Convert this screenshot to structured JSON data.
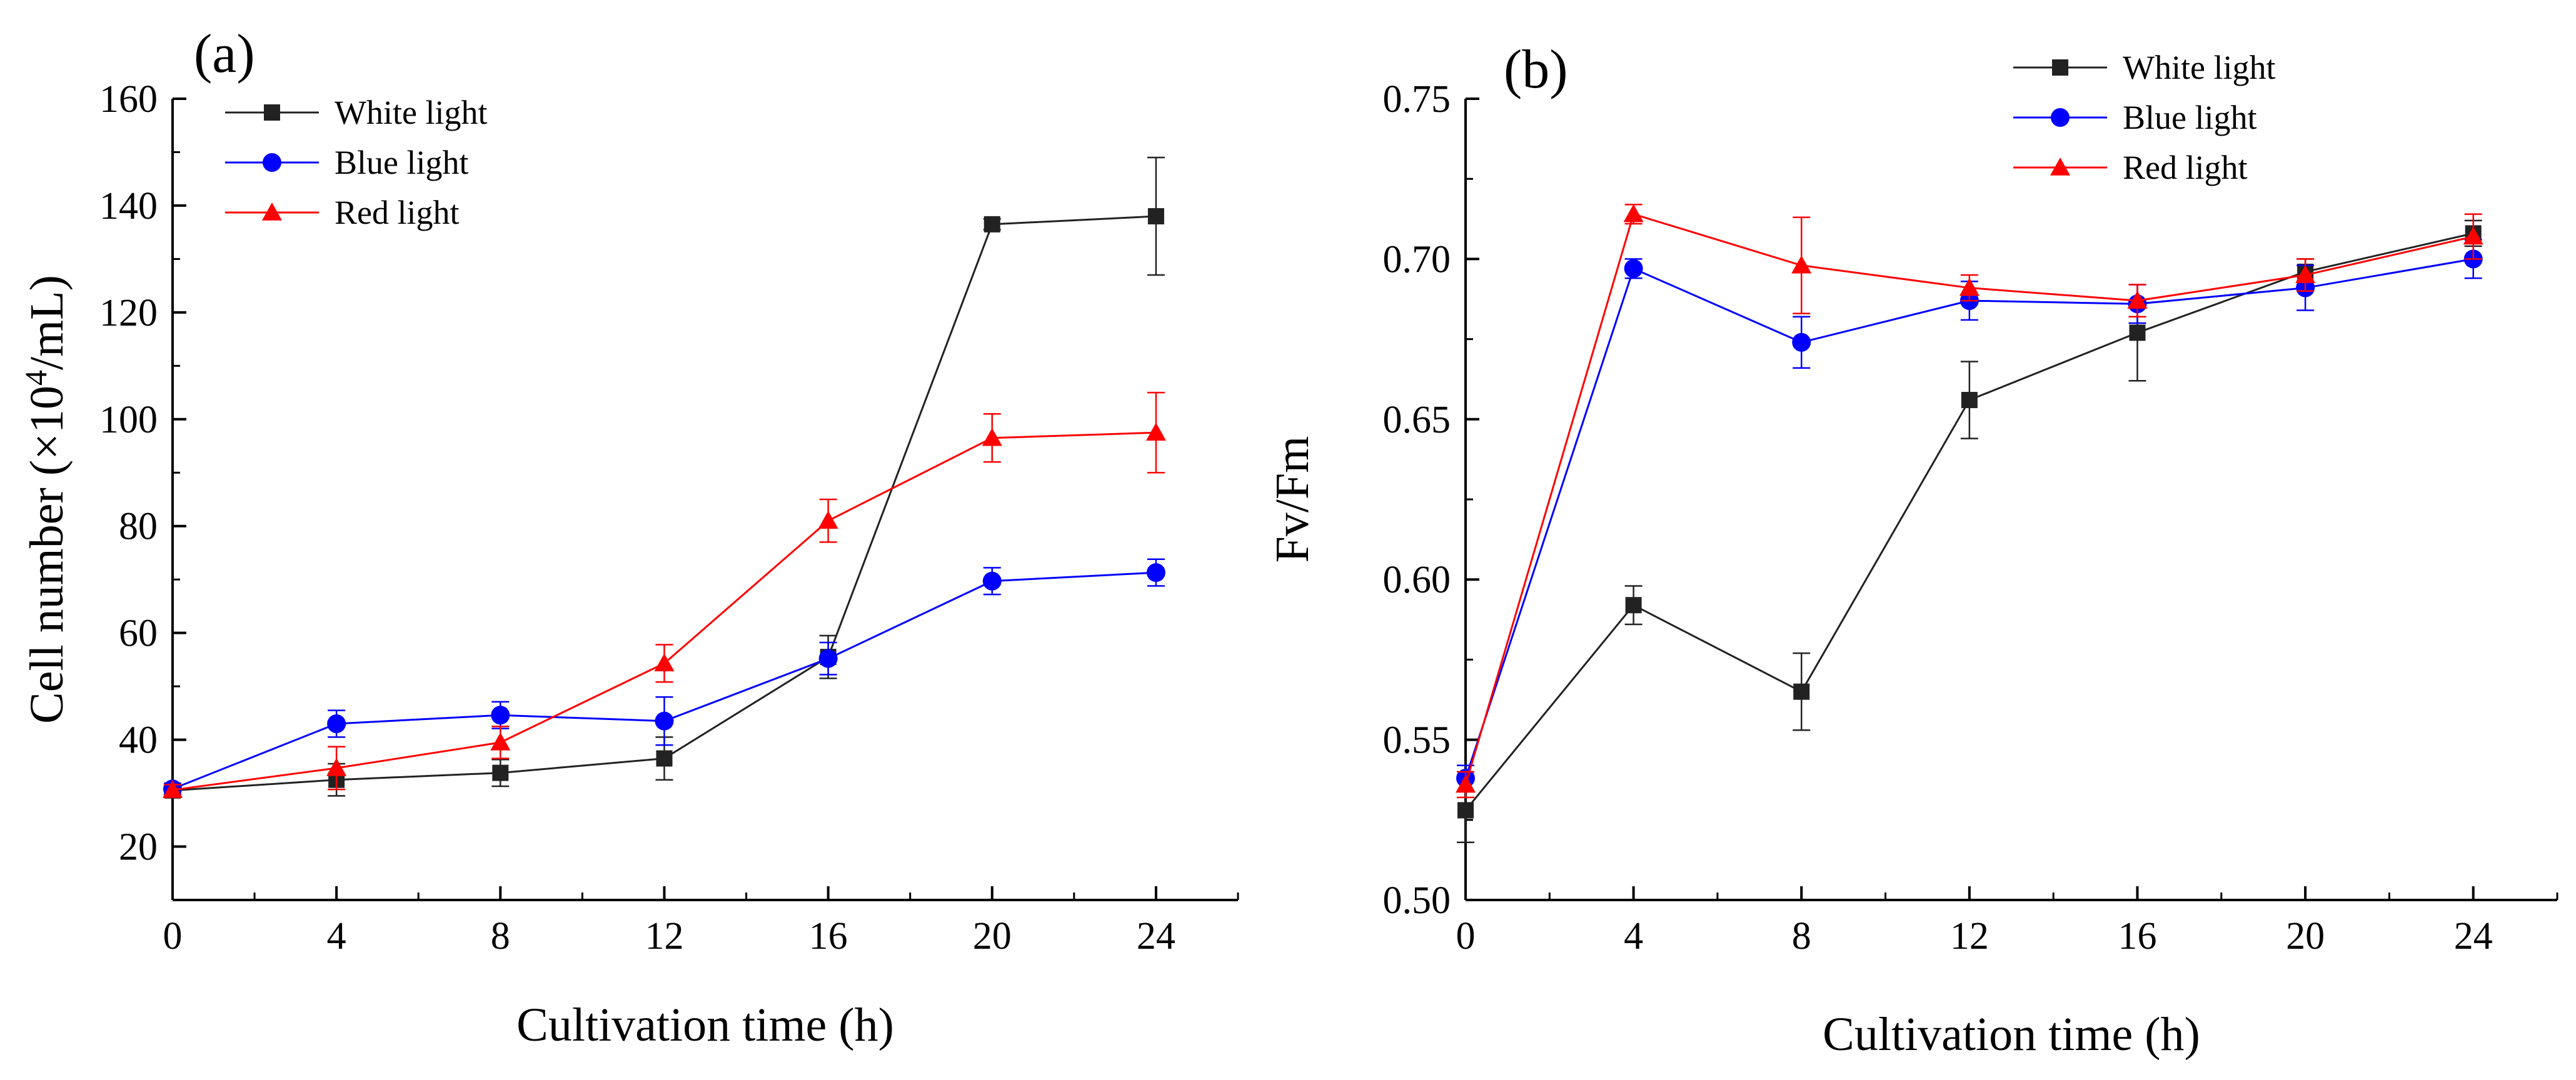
{
  "chart_data": [
    {
      "type": "line",
      "panel_label": "(a)",
      "xlabel": "Cultivation time (h)",
      "ylabel_main": "Cell number (×10",
      "ylabel_sup": "4",
      "ylabel_end": "/mL)",
      "xlim": [
        0,
        26
      ],
      "ylim": [
        10,
        160
      ],
      "x_ticks": [
        0,
        4,
        8,
        12,
        16,
        20,
        24
      ],
      "y_ticks": [
        20,
        40,
        60,
        80,
        100,
        120,
        140,
        160
      ],
      "grid": false,
      "legend_position": "top-left",
      "x": [
        0,
        4,
        8,
        12,
        16,
        20,
        24
      ],
      "series": [
        {
          "name": "White light",
          "color": "#222222",
          "marker": "square",
          "values": [
            30.5,
            32.5,
            33.8,
            36.5,
            55.5,
            136.5,
            138.0
          ],
          "errors": [
            1.0,
            3.0,
            2.5,
            4.0,
            4.0,
            1.0,
            11.0
          ]
        },
        {
          "name": "Blue light",
          "color": "#0000ff",
          "marker": "circle",
          "values": [
            30.8,
            43.0,
            44.6,
            43.5,
            55.2,
            69.7,
            71.3
          ],
          "errors": [
            1.0,
            2.5,
            2.5,
            4.5,
            3.0,
            2.5,
            2.5
          ]
        },
        {
          "name": "Red light",
          "color": "#ff0000",
          "marker": "triangle",
          "values": [
            30.6,
            34.7,
            39.5,
            54.3,
            81.0,
            96.5,
            97.5
          ],
          "errors": [
            1.0,
            4.0,
            3.0,
            3.5,
            4.0,
            4.5,
            7.5
          ]
        }
      ]
    },
    {
      "type": "line",
      "panel_label": "(b)",
      "xlabel": "Cultivation time (h)",
      "ylabel": "Fv/Fm",
      "xlim": [
        0,
        26
      ],
      "ylim": [
        0.5,
        0.75
      ],
      "x_ticks": [
        0,
        4,
        8,
        12,
        16,
        20,
        24
      ],
      "y_ticks": [
        "0.50",
        "0.55",
        "0.60",
        "0.65",
        "0.70",
        "0.75"
      ],
      "grid": false,
      "legend_position": "top-center",
      "x": [
        0,
        4,
        8,
        12,
        16,
        20,
        24
      ],
      "series": [
        {
          "name": "White light",
          "color": "#222222",
          "marker": "square",
          "values": [
            0.528,
            0.592,
            0.565,
            0.656,
            0.677,
            0.696,
            0.708
          ],
          "errors": [
            0.01,
            0.006,
            0.012,
            0.012,
            0.015,
            0.004,
            0.004
          ]
        },
        {
          "name": "Blue light",
          "color": "#0000ff",
          "marker": "circle",
          "values": [
            0.538,
            0.697,
            0.674,
            0.687,
            0.686,
            0.691,
            0.7
          ],
          "errors": [
            0.004,
            0.003,
            0.008,
            0.006,
            0.006,
            0.007,
            0.006
          ]
        },
        {
          "name": "Red light",
          "color": "#ff0000",
          "marker": "triangle",
          "values": [
            0.536,
            0.714,
            0.698,
            0.691,
            0.687,
            0.695,
            0.707
          ],
          "errors": [
            0.004,
            0.003,
            0.015,
            0.004,
            0.005,
            0.005,
            0.007
          ]
        }
      ]
    }
  ]
}
